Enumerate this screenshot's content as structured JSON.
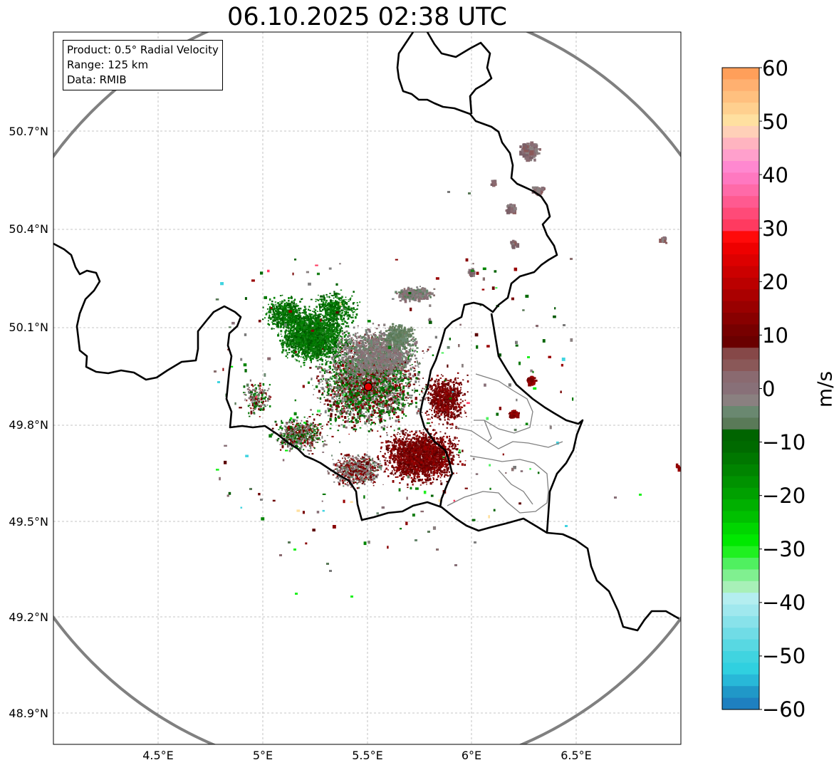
{
  "title": "06.10.2025 02:38 UTC",
  "info": {
    "product": "Product: 0.5° Radial Velocity",
    "range": "Range: 125 km",
    "source": "Data: RMIB"
  },
  "axes": {
    "lat_ticks": [
      "50.7°N",
      "50.4°N",
      "50.1°N",
      "49.8°N",
      "49.5°N",
      "49.2°N",
      "48.9°N"
    ],
    "lon_ticks": [
      "4.5°E",
      "5°E",
      "5.5°E",
      "6°E",
      "6.5°E"
    ]
  },
  "colorbar": {
    "unit": "m/s",
    "ticks": [
      "60",
      "50",
      "40",
      "30",
      "20",
      "10",
      "0",
      "−10",
      "−20",
      "−30",
      "−40",
      "−50",
      "−60"
    ],
    "range": [
      -60,
      60
    ],
    "colors": [
      "#ff9f5a",
      "#ffb070",
      "#ffc07f",
      "#ffd08f",
      "#ffe0a0",
      "#ffd0b8",
      "#ffb4c0",
      "#ffa0cc",
      "#ff88d0",
      "#ff78c0",
      "#ff6aa8",
      "#ff5a90",
      "#ff4a78",
      "#ff3a60",
      "#ff0a0a",
      "#ee0000",
      "#dd0000",
      "#cc0000",
      "#bb0000",
      "#aa0000",
      "#990000",
      "#880000",
      "#770000",
      "#6a0000",
      "#864848",
      "#8a5858",
      "#8a6a70",
      "#887078",
      "#8a8080",
      "#6a8870",
      "#5a7a58",
      "#006400",
      "#006a00",
      "#007700",
      "#008400",
      "#009200",
      "#00a000",
      "#00b000",
      "#00c000",
      "#00d600",
      "#00e800",
      "#20f020",
      "#50f060",
      "#80f090",
      "#a8f0b8",
      "#b4eef0",
      "#a0e8ee",
      "#88e2ea",
      "#70dce6",
      "#58d8e2",
      "#40d4e0",
      "#30d0e0",
      "#28b8d8",
      "#2098c8",
      "#1e80c0"
    ]
  },
  "map": {
    "radar_site": {
      "lon": 5.5,
      "lat": 49.92
    },
    "extent": {
      "lon": [
        4.0,
        7.0
      ],
      "lat": [
        48.8,
        51.0
      ]
    }
  }
}
